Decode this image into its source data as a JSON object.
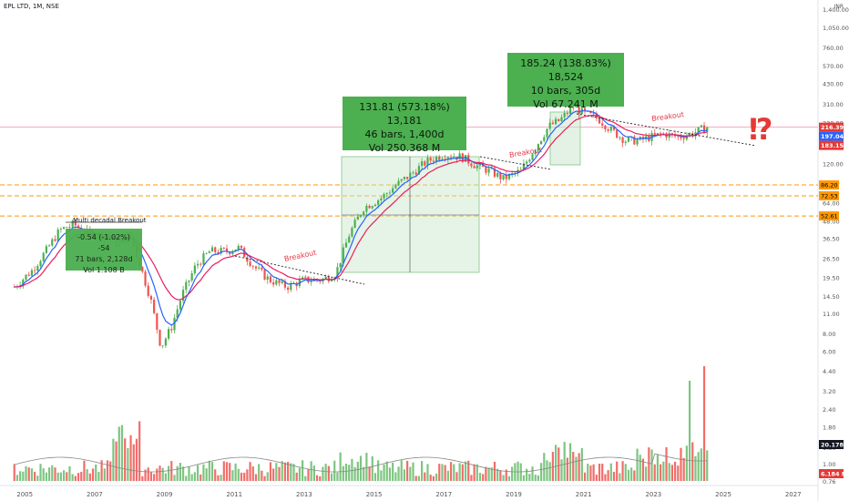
{
  "header": {
    "symbol_line": "EPL LTD, 1M, NSE",
    "currency": "INR"
  },
  "annotations": {
    "info_box_1": {
      "line1": "131.81 (573.18%) 13,181",
      "line2": "46 bars, 1,400d",
      "line3": "Vol 250.368 M"
    },
    "info_box_2": {
      "line1": "185.24 (138.83%) 18,524",
      "line2": "10 bars, 305d",
      "line3": "Vol 67.241 M"
    },
    "info_box_small": {
      "line1": "-0.54 (-1.02%) -54",
      "line2": "71 bars, 2,128d",
      "line3": "Vol 1.108 B"
    },
    "multi_decadal_label": "Multi decadal Breakout",
    "breakout_label": "Breakout",
    "question_mark": "⁉"
  },
  "price_tags": {
    "last": "216.39",
    "ema_fast": "197.04",
    "ema_slow": "183.15",
    "support_1": "86.20",
    "support_2": "72.53",
    "support_3": "52.61",
    "vol_ma": "20.178 M",
    "vol_last": "6.184 M"
  },
  "colors": {
    "up": "#4caf50",
    "down": "#ef5350",
    "ema_fast": "#2962ff",
    "ema_slow": "#e91e63",
    "support": "#ff9800",
    "last_price": "#e53935"
  },
  "chart_data": {
    "type": "candlestick",
    "title": "EPL LTD, 1M, NSE",
    "y_scale": "log",
    "y_ticks": [
      "1,400.00",
      "1,050.00",
      "760.00",
      "570.00",
      "430.00",
      "310.00",
      "230.00",
      "170.00",
      "120.00",
      "88.00",
      "64.00",
      "48.00",
      "36.50",
      "26.50",
      "19.50",
      "14.50",
      "11.00",
      "8.00",
      "6.00",
      "4.40",
      "3.20",
      "2.40",
      "1.80",
      "1.30",
      "1.00",
      "0.76"
    ],
    "x_ticks": [
      "2005",
      "2007",
      "2009",
      "2011",
      "2013",
      "2015",
      "2017",
      "2019",
      "2021",
      "2023",
      "2025",
      "2027"
    ],
    "price_path": [
      [
        2004.7,
        17
      ],
      [
        2005.2,
        22
      ],
      [
        2005.6,
        30
      ],
      [
        2006.0,
        42
      ],
      [
        2006.4,
        46
      ],
      [
        2006.8,
        40
      ],
      [
        2007.3,
        38
      ],
      [
        2007.7,
        33
      ],
      [
        2008.0,
        40
      ],
      [
        2008.3,
        24
      ],
      [
        2008.6,
        14
      ],
      [
        2008.9,
        6.5
      ],
      [
        2009.2,
        9
      ],
      [
        2009.5,
        15
      ],
      [
        2009.9,
        24
      ],
      [
        2010.3,
        30
      ],
      [
        2010.8,
        30
      ],
      [
        2011.1,
        32
      ],
      [
        2011.6,
        23
      ],
      [
        2012.0,
        19
      ],
      [
        2012.5,
        17
      ],
      [
        2013.0,
        19
      ],
      [
        2013.5,
        19
      ],
      [
        2013.9,
        21
      ],
      [
        2014.3,
        40
      ],
      [
        2014.7,
        60
      ],
      [
        2015.2,
        70
      ],
      [
        2015.6,
        85
      ],
      [
        2016.0,
        100
      ],
      [
        2016.5,
        125
      ],
      [
        2017.0,
        140
      ],
      [
        2017.5,
        135
      ],
      [
        2017.9,
        118
      ],
      [
        2018.3,
        108
      ],
      [
        2018.7,
        95
      ],
      [
        2019.2,
        108
      ],
      [
        2019.6,
        155
      ],
      [
        2020.0,
        220
      ],
      [
        2020.3,
        240
      ],
      [
        2020.7,
        300
      ],
      [
        2021.0,
        270
      ],
      [
        2021.4,
        250
      ],
      [
        2021.8,
        205
      ],
      [
        2022.2,
        175
      ],
      [
        2022.6,
        175
      ],
      [
        2022.9,
        185
      ],
      [
        2023.3,
        195
      ],
      [
        2023.7,
        185
      ],
      [
        2024.1,
        195
      ],
      [
        2024.5,
        216.39
      ]
    ],
    "support_levels": [
      86.2,
      72.53,
      52.61
    ],
    "last_price": 216.39
  }
}
